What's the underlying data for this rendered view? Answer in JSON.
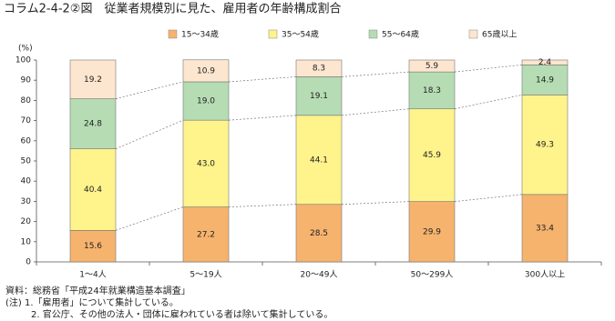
{
  "chart_data": {
    "type": "stacked-bar",
    "title": "コラム2-4-2②図　従業者規模別に見た、雇用者の年齢構成割合",
    "y_unit": "(%)",
    "categories": [
      "1～4人",
      "5～19人",
      "20～49人",
      "50～299人",
      "300人以上"
    ],
    "series": [
      {
        "name": "15～34歳",
        "color": "#f6b36d",
        "values": [
          15.6,
          27.2,
          28.5,
          29.9,
          33.4
        ],
        "value_labels": [
          "15.6",
          "27.2",
          "28.5",
          "29.9",
          "33.4"
        ]
      },
      {
        "name": "35～54歳",
        "color": "#fff38c",
        "values": [
          40.4,
          43.0,
          44.1,
          45.9,
          49.3
        ],
        "value_labels": [
          "40.4",
          "43.0",
          "44.1",
          "45.9",
          "49.3"
        ]
      },
      {
        "name": "55～64歳",
        "color": "#b6dcb3",
        "values": [
          24.8,
          19.0,
          19.1,
          18.3,
          14.9
        ],
        "value_labels": [
          "24.8",
          "19.0",
          "19.1",
          "18.3",
          "14.9"
        ]
      },
      {
        "name": "65歳以上",
        "color": "#fde6cf",
        "values": [
          19.2,
          10.9,
          8.3,
          5.9,
          2.4
        ],
        "value_labels": [
          "19.2",
          "10.9",
          "8.3",
          "5.9",
          "2.4"
        ]
      }
    ],
    "ylim": [
      0,
      100
    ],
    "yticks": [
      0,
      10,
      20,
      30,
      40,
      50,
      60,
      70,
      80,
      90,
      100
    ],
    "notes": [
      "資料：総務省「平成24年就業構造基本調査」",
      "(注) 1.「雇用者」について集計している。",
      "2. 官公庁、その他の法人・団体に雇われている者は除いて集計している。"
    ]
  }
}
